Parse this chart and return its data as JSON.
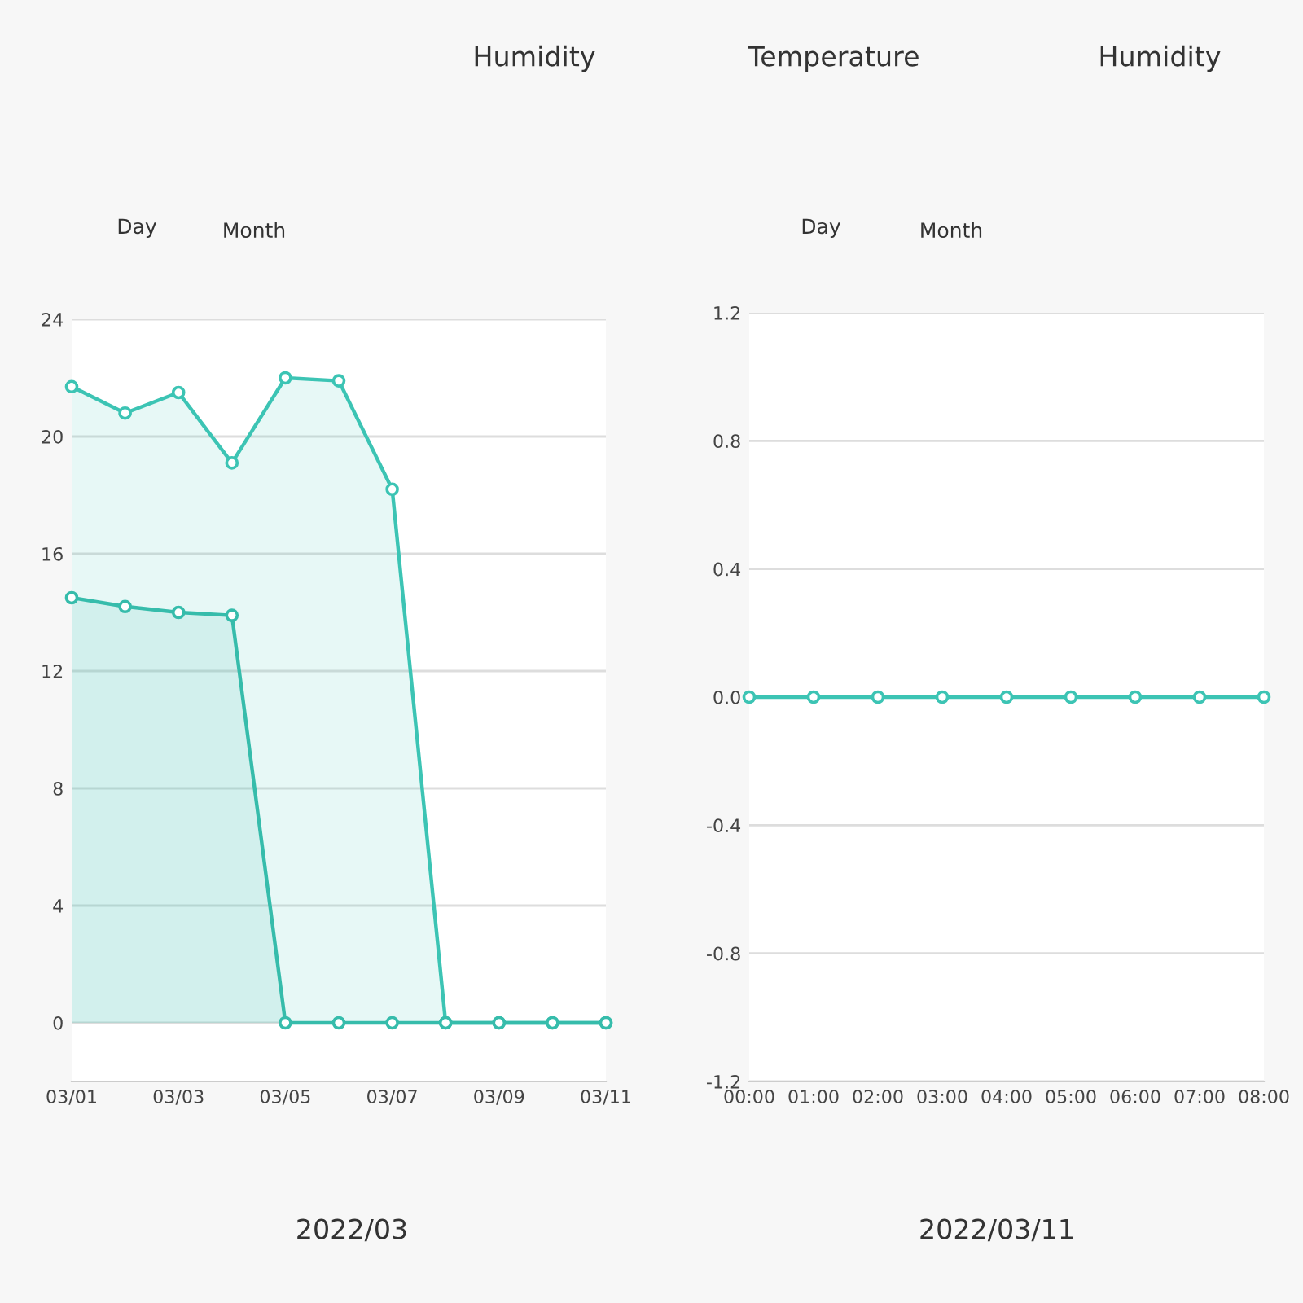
{
  "chart_data": [
    {
      "type": "area",
      "categories": [
        "03/01",
        null,
        "03/03",
        null,
        "03/05",
        null,
        "03/07",
        null,
        "03/09",
        null,
        "03/11"
      ],
      "series": [
        {
          "color": "#3cc4b4",
          "values": [
            21.7,
            20.8,
            21.5,
            19.1,
            22.0,
            21.9,
            18.2,
            0,
            0,
            0,
            0
          ]
        },
        {
          "color": "#36bcab",
          "values": [
            14.5,
            14.2,
            14.0,
            13.9,
            0,
            0,
            0,
            0,
            0,
            0,
            0
          ]
        }
      ],
      "ylim": [
        -2,
        24
      ],
      "yticks": [
        0,
        4,
        8,
        12,
        16,
        20,
        24
      ],
      "grid": "y",
      "marker": "circle",
      "line_style": "solid",
      "legend": false,
      "annotations": [
        "Humidity",
        "Temperature",
        "Humidity",
        "Day",
        "Month",
        "2022/03"
      ]
    },
    {
      "type": "line",
      "x": [
        0,
        1,
        2,
        3,
        4,
        5,
        6,
        7,
        8
      ],
      "series": [
        {
          "color": "#3cc4b4",
          "values": [
            0,
            0,
            0,
            0,
            0,
            0,
            0,
            0,
            0
          ]
        }
      ],
      "xlim": [
        0,
        8
      ],
      "xticks": [
        {
          "value": 0,
          "label": "00:00"
        },
        {
          "value": 1,
          "label": "01:00"
        },
        {
          "value": 2,
          "label": "02:00"
        },
        {
          "value": 3,
          "label": "03:00"
        },
        {
          "value": 4,
          "label": "04:00"
        },
        {
          "value": 5,
          "label": "05:00"
        },
        {
          "value": 6,
          "label": "06:00"
        },
        {
          "value": 7,
          "label": "07:00"
        },
        {
          "value": 8,
          "label": "08:00"
        }
      ],
      "ylim": [
        -1.2,
        1.2
      ],
      "yticks": [
        -1.2,
        -0.8,
        -0.4,
        {
          "value": 0,
          "label": "0.0"
        },
        0.4,
        0.8,
        1.2
      ],
      "grid": "y",
      "marker": "circle",
      "line_style": "solid",
      "legend": false,
      "annotations": [
        "Day",
        "Month",
        "2022/03/11"
      ]
    }
  ]
}
